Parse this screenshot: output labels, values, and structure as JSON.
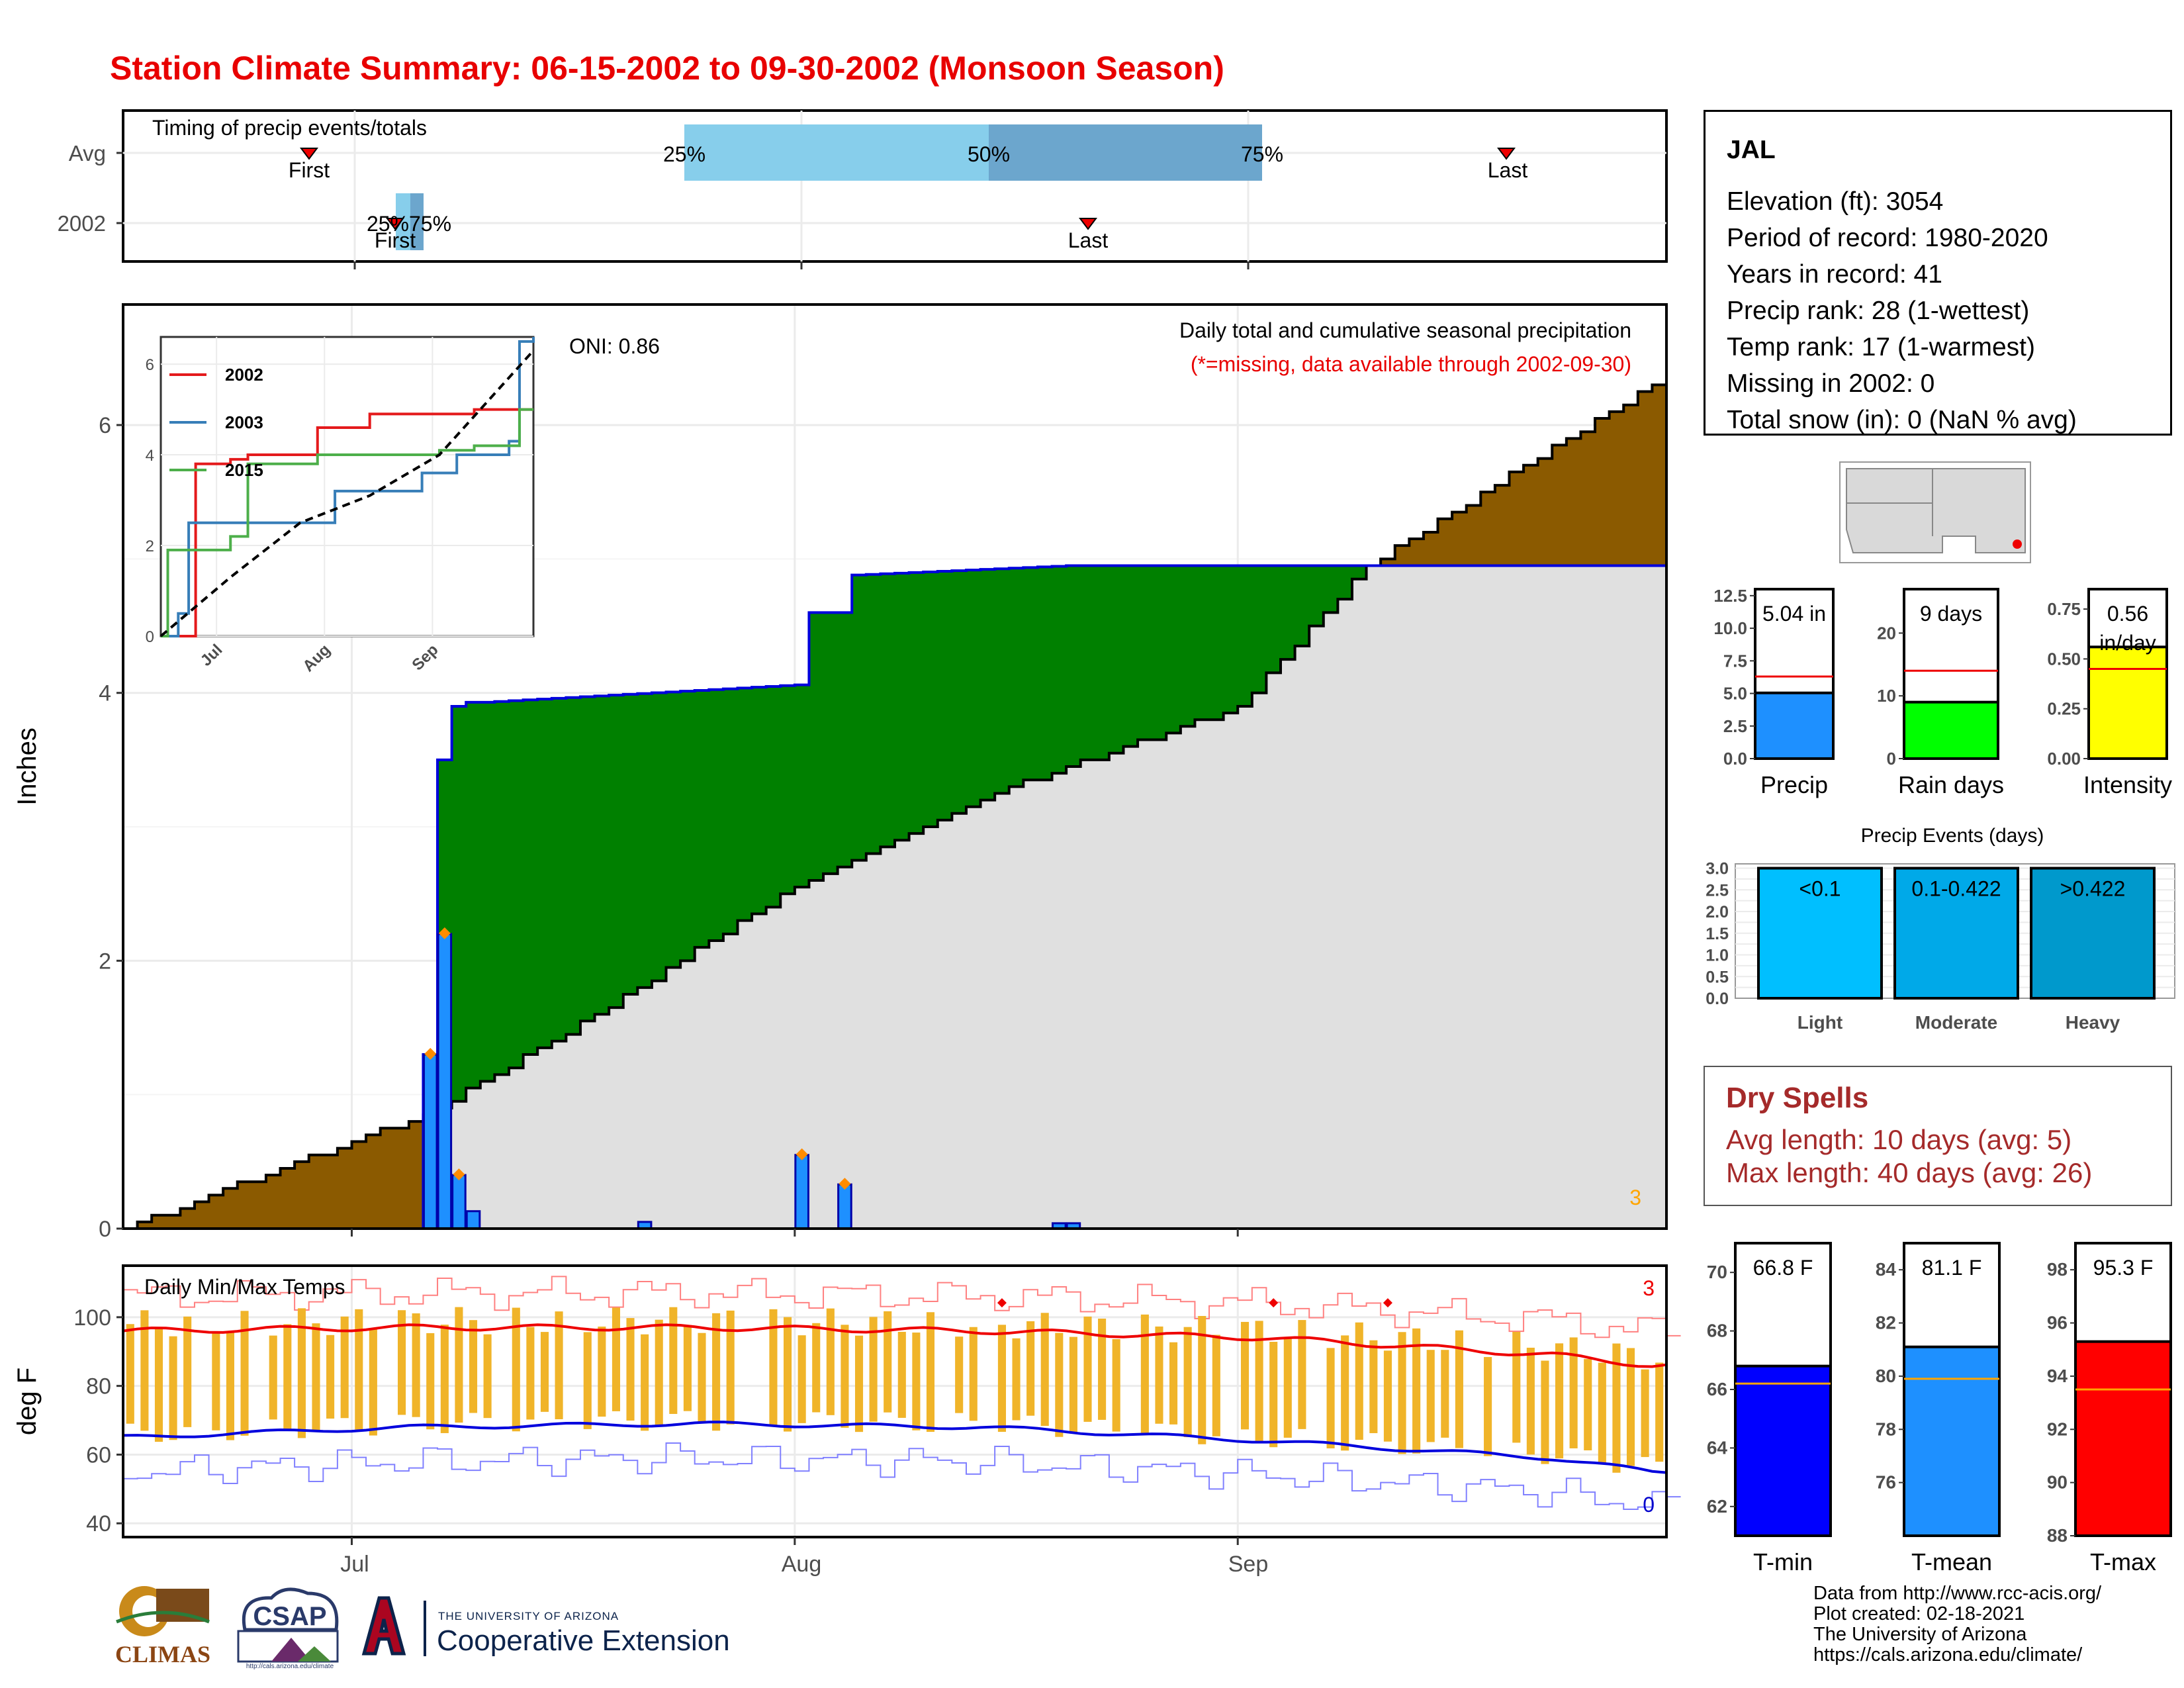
{
  "title": "Station Climate Summary: 06-15-2002 to 09-30-2002 (Monsoon Season)",
  "colors": {
    "title": "#e80000",
    "precip_bar": "#1e90ff",
    "cum_green": "#008000",
    "cum_brown": "#8b5a00",
    "avg_fill": "#e0e0e0",
    "dry_spell": "#a52a2a"
  },
  "timing": {
    "label": "Timing of precip events/totals",
    "rows": [
      "Avg",
      "2002"
    ],
    "avg": {
      "first": "First",
      "last": "Last",
      "p25": "25%",
      "p50": "50%",
      "p75": "75%"
    },
    "y2002": {
      "first": "First",
      "last": "Last",
      "pct_labels": "25%75%"
    }
  },
  "main": {
    "ylabel": "Inches",
    "oni": "ONI: 0.86",
    "legend_line1": "Daily total and cumulative seasonal precipitation",
    "legend_line2": "(*=missing, data available through 2002-09-30)",
    "corner_count": "3",
    "yticks": [
      "0",
      "2",
      "4",
      "6"
    ]
  },
  "inset": {
    "legend": [
      "2002",
      "2003",
      "2015"
    ],
    "legend_colors": [
      "#e41a1c",
      "#377eb8",
      "#4daf4a"
    ],
    "yticks": [
      "0",
      "2",
      "4",
      "6"
    ],
    "xticks": [
      "Jul",
      "Aug",
      "Sep"
    ]
  },
  "temps": {
    "label": "Daily Min/Max Temps",
    "ylabel": "deg F",
    "yticks": [
      "40",
      "60",
      "80",
      "100"
    ],
    "max_count": "3",
    "min_count": "0"
  },
  "xaxis": {
    "ticks": [
      "Jul",
      "Aug",
      "Sep"
    ]
  },
  "station": {
    "name": "JAL",
    "lines": [
      "Elevation (ft): 3054",
      "Period of record: 1980-2020",
      "Years in record: 41",
      "Precip rank: 28 (1-wettest)",
      "Temp rank: 17 (1-warmest)",
      "Missing in 2002: 0",
      "Total snow (in): 0 (NaN % avg)"
    ]
  },
  "mini_bars": [
    {
      "label": "Precip",
      "value_label": "5.04 in",
      "yticks": [
        "0.0",
        "2.5",
        "5.0",
        "7.5",
        "10.0",
        "12.5"
      ]
    },
    {
      "label": "Rain days",
      "value_label": "9 days",
      "yticks": [
        "0",
        "10",
        "20"
      ]
    },
    {
      "label": "Intensity",
      "value_label": "0.56 in/day",
      "yticks": [
        "0.00",
        "0.25",
        "0.50",
        "0.75"
      ]
    }
  ],
  "events": {
    "title": "Precip Events (days)",
    "yticks": [
      "0.0",
      "0.5",
      "1.0",
      "1.5",
      "2.0",
      "2.5",
      "3.0"
    ],
    "bars": [
      {
        "category": "Light",
        "label": "<0.1"
      },
      {
        "category": "Moderate",
        "label": "0.1-0.422"
      },
      {
        "category": "Heavy",
        "label": ">0.422"
      }
    ]
  },
  "dry_spells": {
    "title": "Dry Spells",
    "avg": "Avg length: 10 days (avg: 5)",
    "max": "Max length: 40 days (avg: 26)"
  },
  "temp_bars": [
    {
      "label": "T-min",
      "value_label": "66.8 F",
      "yticks": [
        "62",
        "64",
        "66",
        "68",
        "70"
      ]
    },
    {
      "label": "T-mean",
      "value_label": "81.1 F",
      "yticks": [
        "76",
        "78",
        "80",
        "82",
        "84"
      ]
    },
    {
      "label": "T-max",
      "value_label": "95.3 F",
      "yticks": [
        "88",
        "90",
        "92",
        "94",
        "96",
        "98"
      ]
    }
  ],
  "footer": {
    "lines": [
      "Data from http://www.rcc-acis.org/",
      "Plot created: 02-18-2021",
      "The University of Arizona",
      "https://cals.arizona.edu/climate/"
    ],
    "logo1": "CLIMAS",
    "logo2": "CSAP",
    "logo2_url": "http://cals.arizona.edu/climate",
    "logo3_small": "THE UNIVERSITY OF ARIZONA",
    "logo3_big": "Cooperative Extension"
  },
  "chart_data": [
    {
      "type": "area",
      "title": "Daily total and cumulative seasonal precipitation",
      "ylabel": "Inches",
      "x_range": [
        "2002-06-15",
        "2002-09-30"
      ],
      "ylim": [
        0,
        6.9
      ],
      "series": [
        {
          "name": "2002",
          "x": [
            "2002-06-15",
            "2002-07-05",
            "2002-07-06",
            "2002-07-07",
            "2002-07-08",
            "2002-07-09",
            "2002-07-10",
            "2002-08-01",
            "2002-08-02",
            "2002-08-04",
            "2002-08-05",
            "2002-08-20",
            "2002-09-30"
          ],
          "values": [
            0,
            0,
            1.3,
            3.5,
            3.9,
            3.93,
            3.93,
            4.06,
            4.6,
            4.6,
            4.88,
            4.95,
            4.95
          ]
        },
        {
          "name": "Avg cumulative",
          "x": [
            "2002-06-15",
            "2002-07-01",
            "2002-07-06",
            "2002-07-15",
            "2002-08-01",
            "2002-08-15",
            "2002-09-01",
            "2002-09-10",
            "2002-09-30"
          ],
          "values": [
            0,
            0.65,
            0.85,
            1.4,
            2.55,
            3.25,
            3.9,
            4.95,
            6.3
          ]
        }
      ],
      "daily_bars": {
        "x": [
          "2002-07-06",
          "2002-07-07",
          "2002-07-08",
          "2002-07-09",
          "2002-07-21",
          "2002-08-01",
          "2002-08-04",
          "2002-08-19",
          "2002-08-20"
        ],
        "values": [
          1.3,
          2.2,
          0.4,
          0.13,
          0.05,
          0.55,
          0.33,
          0.04,
          0.04
        ]
      }
    },
    {
      "type": "line",
      "title": "",
      "ylim": [
        0,
        6.6
      ],
      "series": [
        {
          "name": "2002",
          "x": [
            0,
            9,
            10,
            20,
            25,
            45,
            60,
            80,
            90,
            107
          ],
          "values": [
            0,
            0,
            3.8,
            3.9,
            4.0,
            4.6,
            4.9,
            4.9,
            5.0,
            5.0
          ]
        },
        {
          "name": "2003",
          "x": [
            0,
            5,
            8,
            20,
            50,
            75,
            85,
            100,
            103,
            107
          ],
          "values": [
            0,
            0.5,
            2.5,
            2.5,
            3.2,
            3.6,
            4.0,
            4.3,
            6.5,
            6.6
          ]
        },
        {
          "name": "2015",
          "x": [
            0,
            2,
            10,
            20,
            25,
            45,
            80,
            90,
            103,
            107
          ],
          "values": [
            0,
            1.9,
            1.9,
            2.2,
            3.8,
            4.0,
            4.1,
            4.2,
            5.0,
            5.0
          ]
        },
        {
          "name": "Avg",
          "x": [
            0,
            20,
            40,
            60,
            80,
            107
          ],
          "values": [
            0,
            1.3,
            2.5,
            3.1,
            4.0,
            6.3
          ]
        }
      ]
    },
    {
      "type": "line",
      "title": "Daily Min/Max Temps",
      "ylabel": "deg F",
      "ylim": [
        36,
        115
      ],
      "series": [
        {
          "name": "Avg max",
          "x": [
            0,
            20,
            40,
            60,
            80,
            100,
            107
          ],
          "values": [
            96,
            97,
            97,
            96,
            94,
            89,
            86
          ]
        },
        {
          "name": "Avg min",
          "x": [
            0,
            20,
            40,
            60,
            80,
            100,
            107
          ],
          "values": [
            65,
            68,
            69,
            68,
            64,
            59,
            55
          ]
        }
      ]
    },
    {
      "type": "bar",
      "categories": [
        "Precip"
      ],
      "values": [
        5.04
      ],
      "ylim": [
        0,
        13
      ],
      "avg": 6.3
    },
    {
      "type": "bar",
      "categories": [
        "Rain days"
      ],
      "values": [
        9
      ],
      "ylim": [
        0,
        27
      ],
      "avg": 14
    },
    {
      "type": "bar",
      "categories": [
        "Intensity"
      ],
      "values": [
        0.56
      ],
      "ylim": [
        0,
        0.85
      ],
      "avg": 0.45
    },
    {
      "type": "bar",
      "categories": [
        "Light",
        "Moderate",
        "Heavy"
      ],
      "values": [
        3,
        3,
        3
      ],
      "ylim": [
        0,
        3.1
      ]
    },
    {
      "type": "bar",
      "categories": [
        "T-min"
      ],
      "values": [
        66.8
      ],
      "ylim": [
        61,
        71
      ],
      "avg": 66.2
    },
    {
      "type": "bar",
      "categories": [
        "T-mean"
      ],
      "values": [
        81.1
      ],
      "ylim": [
        74,
        85
      ],
      "avg": 79.9
    },
    {
      "type": "bar",
      "categories": [
        "T-max"
      ],
      "values": [
        95.3
      ],
      "ylim": [
        88,
        99
      ],
      "avg": 93.5
    }
  ]
}
